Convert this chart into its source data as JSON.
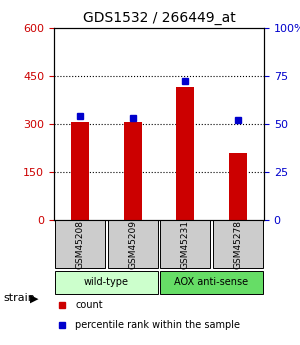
{
  "title": "GDS1532 / 266449_at",
  "samples": [
    "GSM45208",
    "GSM45209",
    "GSM45231",
    "GSM45278"
  ],
  "counts": [
    305,
    305,
    415,
    210
  ],
  "percentiles": [
    54,
    53,
    72,
    52
  ],
  "left_ylim": [
    0,
    600
  ],
  "right_ylim": [
    0,
    100
  ],
  "left_yticks": [
    0,
    150,
    300,
    450,
    600
  ],
  "right_yticks": [
    0,
    25,
    50,
    75,
    100
  ],
  "right_yticklabels": [
    "0",
    "25",
    "50",
    "75",
    "100%"
  ],
  "bar_color": "#cc0000",
  "dot_color": "#0000cc",
  "grid_color": "#000000",
  "groups": [
    {
      "label": "wild-type",
      "samples": [
        0,
        1
      ],
      "color": "#ccffcc"
    },
    {
      "label": "AOX anti-sense",
      "samples": [
        2,
        3
      ],
      "color": "#66dd66"
    }
  ],
  "strain_label": "strain",
  "legend_items": [
    {
      "color": "#cc0000",
      "label": "count"
    },
    {
      "color": "#0000cc",
      "label": "percentile rank within the sample"
    }
  ],
  "left_tick_color": "#cc0000",
  "right_tick_color": "#0000cc",
  "sample_box_color": "#cccccc",
  "bar_width": 0.35
}
